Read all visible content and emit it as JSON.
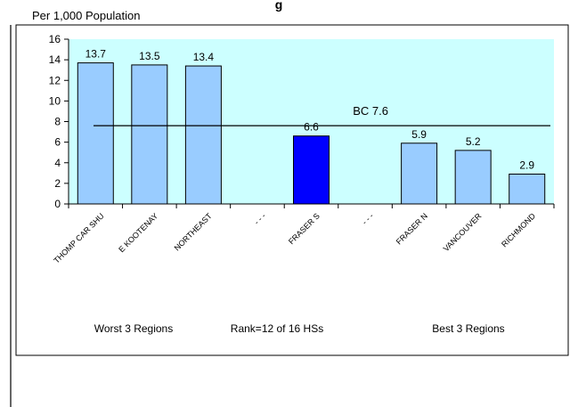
{
  "chart_data": {
    "type": "bar",
    "title_fragment": "g",
    "ylabel": "Per 1,000 Population",
    "ylim": [
      0,
      16
    ],
    "yticks": [
      0,
      2,
      4,
      6,
      8,
      10,
      12,
      14,
      16
    ],
    "categories": [
      "THOMP CAR SHU",
      "E KOOTENAY",
      "NORTHEAST",
      "- - -",
      "FRASER S",
      "- - -",
      "FRASER N",
      "VANCOUVER",
      "RICHMOND"
    ],
    "values": [
      13.7,
      13.5,
      13.4,
      null,
      6.6,
      null,
      5.9,
      5.2,
      2.9
    ],
    "value_labels": [
      "13.7",
      "13.5",
      "13.4",
      "",
      "6.6",
      "",
      "5.9",
      "5.2",
      "2.9"
    ],
    "highlight_index": 4,
    "reference_line": {
      "label": "BC 7.6",
      "value": 7.6
    },
    "group_labels": [
      "Worst 3 Regions",
      "Rank=12 of 16 HSs",
      "Best 3 Regions"
    ],
    "colors": {
      "plot_background": "#ccffff",
      "bar": "#99ccff",
      "highlight_bar": "#0000ff",
      "outline": "#000000"
    }
  }
}
